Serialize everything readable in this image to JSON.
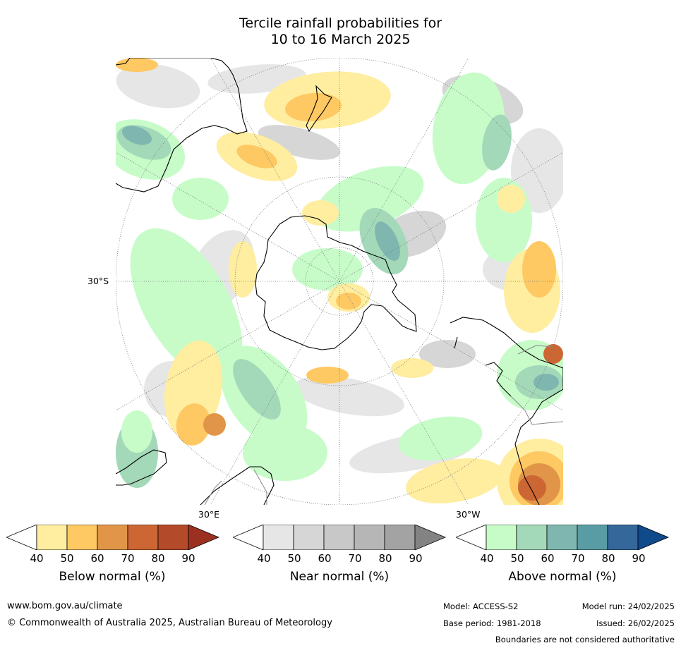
{
  "title": {
    "line1": "Tercile rainfall probabilities for",
    "line2": "10 to 16 March 2025"
  },
  "map": {
    "projection": "south-polar-stereographic",
    "lat_labels": {
      "west": "30°S"
    },
    "lon_labels": {
      "east": "30°E",
      "west": "30°W"
    },
    "colors": {
      "below": [
        "#ffeda0",
        "#fec863",
        "#e09548",
        "#cc6633",
        "#b34a2a",
        "#9c3020"
      ],
      "near": [
        "#e6e6e6",
        "#d6d6d6",
        "#c8c8c8",
        "#b6b6b6",
        "#a3a3a3",
        "#838383"
      ],
      "above": [
        "#c7fcc9",
        "#a3d9b8",
        "#7fb7b0",
        "#5a9ca3",
        "#35679a",
        "#0f4a8a"
      ],
      "land_outline": "#000000",
      "grid": "#888888"
    }
  },
  "colorbars": [
    {
      "key": "below",
      "title": "Below normal (%)",
      "ticks": [
        "40",
        "50",
        "60",
        "70",
        "80",
        "90"
      ]
    },
    {
      "key": "near",
      "title": "Near normal (%)",
      "ticks": [
        "40",
        "50",
        "60",
        "70",
        "80",
        "90"
      ]
    },
    {
      "key": "above",
      "title": "Above normal (%)",
      "ticks": [
        "40",
        "50",
        "60",
        "70",
        "80",
        "90"
      ]
    }
  ],
  "footer": {
    "website": "www.bom.gov.au/climate",
    "copyright": "© Commonwealth of Australia 2025, Australian Bureau of Meteorology",
    "model": "Model: ACCESS-S2",
    "base_period": "Base period: 1981-2018",
    "model_run": "Model run: 24/02/2025",
    "issued": "Issued: 26/02/2025",
    "disclaimer": "Boundaries are not considered authoritative"
  }
}
